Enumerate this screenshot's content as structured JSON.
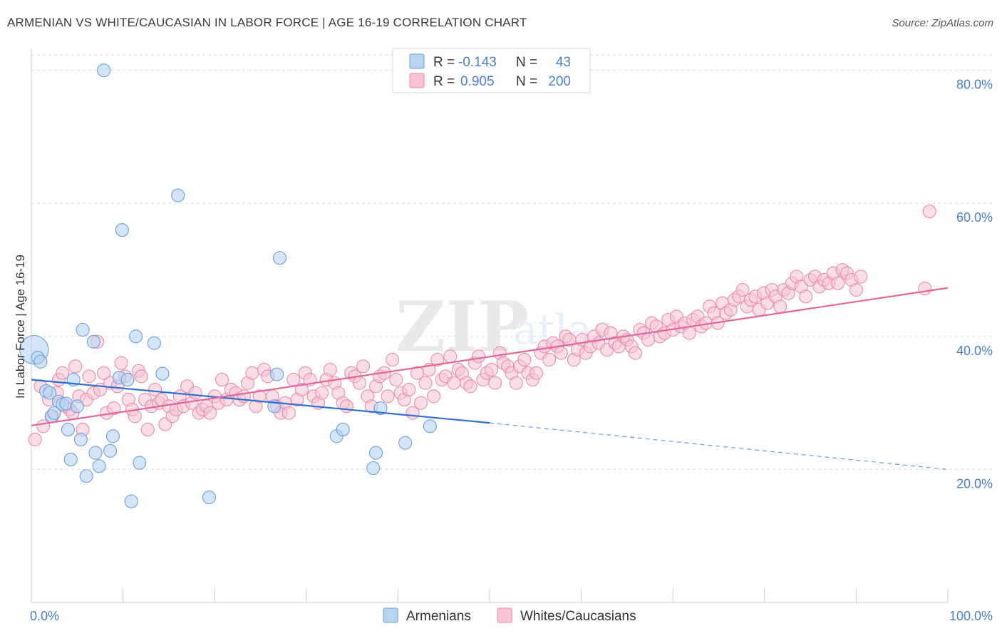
{
  "title": "ARMENIAN VS WHITE/CAUCASIAN IN LABOR FORCE | AGE 16-19 CORRELATION CHART",
  "source": "Source: ZipAtlas.com",
  "watermark": {
    "zip": "ZIP",
    "atlas": "atlas"
  },
  "colors": {
    "armenian_fill": "#b9d3f3",
    "armenian_stroke": "#6b9fd9",
    "armenian_line": "#2f6fd0",
    "white_fill": "#f6c3d4",
    "white_stroke": "#e88aac",
    "white_line": "#e0679a",
    "tick_text": "#4a7fc8",
    "grid": "#dddddd"
  },
  "legend": {
    "rows": [
      {
        "r_label": "R =",
        "r_value": "-0.143",
        "n_label": "N =",
        "n_value": "43"
      },
      {
        "r_label": "R =",
        "r_value": "0.905",
        "n_label": "N =",
        "n_value": "200"
      }
    ]
  },
  "bottom_legend": [
    "Armenians",
    "Whites/Caucasians"
  ],
  "chart_data": {
    "type": "scatter",
    "title": "ARMENIAN VS WHITE/CAUCASIAN IN LABOR FORCE | AGE 16-19 CORRELATION CHART",
    "xlabel": "",
    "ylabel": "In Labor Force | Age 16-19",
    "xlim": [
      0,
      100
    ],
    "ylim": [
      0,
      82
    ],
    "x_tick_labels": [
      "0.0%",
      "100.0%"
    ],
    "y_ticks": [
      20,
      40,
      60,
      80
    ],
    "y_tick_labels": [
      "20.0%",
      "40.0%",
      "60.0%",
      "80.0%"
    ],
    "grid": true,
    "legend_position": "top-center",
    "series": [
      {
        "name": "Armenians",
        "R": -0.143,
        "N": 43,
        "trend": {
          "x0": 0,
          "y0": 33.5,
          "x1": 50,
          "y1": 27.0,
          "dashed_to_x": 100,
          "dashed_to_y": 20.0
        },
        "points": [
          [
            0.3,
            38.0
          ],
          [
            0.7,
            36.8
          ],
          [
            1.0,
            36.2
          ],
          [
            1.6,
            31.8
          ],
          [
            2.0,
            31.5
          ],
          [
            2.2,
            28.0
          ],
          [
            2.5,
            28.5
          ],
          [
            3.0,
            30.2
          ],
          [
            3.4,
            29.8
          ],
          [
            3.8,
            29.9
          ],
          [
            4.0,
            26.0
          ],
          [
            4.3,
            21.5
          ],
          [
            4.6,
            33.5
          ],
          [
            5.0,
            29.5
          ],
          [
            5.4,
            24.5
          ],
          [
            5.6,
            41.0
          ],
          [
            6.0,
            19.0
          ],
          [
            6.8,
            39.2
          ],
          [
            7.0,
            22.5
          ],
          [
            7.4,
            20.5
          ],
          [
            7.9,
            80.0
          ],
          [
            8.6,
            22.8
          ],
          [
            8.9,
            25.0
          ],
          [
            9.6,
            33.8
          ],
          [
            9.9,
            56.0
          ],
          [
            10.5,
            33.5
          ],
          [
            10.9,
            15.2
          ],
          [
            11.4,
            40.0
          ],
          [
            11.8,
            21.0
          ],
          [
            13.4,
            39.0
          ],
          [
            14.3,
            34.4
          ],
          [
            16.0,
            61.2
          ],
          [
            19.4,
            15.8
          ],
          [
            27.1,
            51.8
          ],
          [
            26.8,
            34.3
          ],
          [
            26.5,
            29.5
          ],
          [
            33.3,
            25.0
          ],
          [
            34.0,
            26.0
          ],
          [
            37.3,
            20.2
          ],
          [
            37.6,
            22.5
          ],
          [
            38.1,
            29.2
          ],
          [
            40.8,
            24.0
          ],
          [
            43.5,
            26.5
          ]
        ]
      },
      {
        "name": "Whites/Caucasians",
        "R": 0.905,
        "N": 200,
        "trend": {
          "x0": 0,
          "y0": 26.6,
          "x1": 100,
          "y1": 47.3
        },
        "points": [
          [
            0.4,
            24.5
          ],
          [
            1.0,
            32.5
          ],
          [
            1.3,
            26.5
          ],
          [
            1.9,
            30.5
          ],
          [
            2.3,
            28.0
          ],
          [
            2.8,
            31.5
          ],
          [
            3.0,
            33.5
          ],
          [
            3.4,
            34.5
          ],
          [
            3.7,
            29.5
          ],
          [
            4.2,
            29.0
          ],
          [
            4.5,
            28.5
          ],
          [
            4.8,
            35.5
          ],
          [
            5.2,
            31.0
          ],
          [
            5.6,
            26.0
          ],
          [
            6.0,
            30.5
          ],
          [
            6.3,
            34.0
          ],
          [
            6.8,
            31.5
          ],
          [
            7.2,
            39.2
          ],
          [
            7.5,
            32.0
          ],
          [
            7.9,
            34.5
          ],
          [
            8.2,
            28.5
          ],
          [
            8.6,
            33.0
          ],
          [
            9.0,
            29.2
          ],
          [
            9.4,
            32.5
          ],
          [
            9.8,
            36.0
          ],
          [
            10.2,
            34.0
          ],
          [
            10.6,
            30.5
          ],
          [
            11.0,
            29.0
          ],
          [
            11.3,
            28.0
          ],
          [
            11.7,
            34.8
          ],
          [
            12.0,
            34.0
          ],
          [
            12.4,
            30.5
          ],
          [
            12.7,
            26.0
          ],
          [
            13.1,
            29.5
          ],
          [
            13.5,
            32.0
          ],
          [
            13.9,
            30.0
          ],
          [
            14.2,
            30.5
          ],
          [
            14.6,
            26.8
          ],
          [
            15.0,
            29.5
          ],
          [
            15.4,
            28.0
          ],
          [
            15.8,
            29.0
          ],
          [
            16.2,
            31.0
          ],
          [
            16.6,
            29.5
          ],
          [
            17.0,
            32.5
          ],
          [
            17.5,
            30.0
          ],
          [
            17.9,
            31.5
          ],
          [
            18.3,
            28.5
          ],
          [
            18.7,
            29.0
          ],
          [
            19.1,
            29.5
          ],
          [
            19.5,
            28.5
          ],
          [
            20.0,
            31.0
          ],
          [
            20.4,
            30.0
          ],
          [
            20.8,
            33.5
          ],
          [
            21.3,
            30.5
          ],
          [
            21.8,
            32.0
          ],
          [
            22.3,
            31.5
          ],
          [
            22.7,
            30.5
          ],
          [
            23.2,
            31.0
          ],
          [
            23.6,
            33.0
          ],
          [
            24.1,
            34.5
          ],
          [
            24.5,
            29.5
          ],
          [
            24.9,
            31.0
          ],
          [
            25.4,
            35.0
          ],
          [
            25.8,
            34.0
          ],
          [
            26.3,
            31.0
          ],
          [
            26.8,
            29.5
          ],
          [
            27.2,
            28.5
          ],
          [
            27.7,
            30.0
          ],
          [
            28.1,
            28.5
          ],
          [
            28.6,
            33.5
          ],
          [
            29.0,
            30.5
          ],
          [
            29.5,
            32.0
          ],
          [
            29.9,
            34.5
          ],
          [
            30.4,
            33.5
          ],
          [
            30.8,
            31.0
          ],
          [
            31.3,
            30.0
          ],
          [
            31.7,
            31.5
          ],
          [
            32.2,
            33.5
          ],
          [
            32.6,
            35.0
          ],
          [
            33.1,
            33.0
          ],
          [
            33.5,
            31.5
          ],
          [
            34.0,
            30.0
          ],
          [
            34.4,
            29.5
          ],
          [
            34.9,
            34.5
          ],
          [
            35.3,
            34.0
          ],
          [
            35.8,
            33.0
          ],
          [
            36.2,
            35.5
          ],
          [
            36.7,
            31.0
          ],
          [
            37.1,
            29.5
          ],
          [
            37.6,
            32.5
          ],
          [
            38.0,
            34.0
          ],
          [
            38.5,
            34.5
          ],
          [
            38.9,
            31.0
          ],
          [
            39.4,
            36.5
          ],
          [
            39.8,
            33.5
          ],
          [
            40.3,
            31.5
          ],
          [
            40.7,
            30.5
          ],
          [
            41.2,
            32.0
          ],
          [
            41.6,
            28.5
          ],
          [
            42.1,
            34.5
          ],
          [
            42.5,
            30.0
          ],
          [
            43.0,
            33.0
          ],
          [
            43.4,
            35.0
          ],
          [
            43.9,
            31.0
          ],
          [
            44.3,
            36.5
          ],
          [
            44.8,
            33.5
          ],
          [
            45.2,
            34.0
          ],
          [
            45.7,
            37.0
          ],
          [
            46.1,
            33.0
          ],
          [
            46.6,
            35.0
          ],
          [
            47.0,
            34.5
          ],
          [
            47.5,
            33.0
          ],
          [
            47.9,
            32.5
          ],
          [
            48.4,
            36.0
          ],
          [
            48.8,
            37.0
          ],
          [
            49.3,
            33.5
          ],
          [
            49.7,
            34.5
          ],
          [
            50.2,
            35.0
          ],
          [
            50.6,
            33.0
          ],
          [
            51.1,
            37.5
          ],
          [
            51.5,
            36.0
          ],
          [
            52.0,
            35.5
          ],
          [
            52.4,
            34.5
          ],
          [
            52.9,
            33.0
          ],
          [
            53.3,
            35.5
          ],
          [
            53.8,
            36.5
          ],
          [
            54.2,
            34.5
          ],
          [
            54.7,
            33.5
          ],
          [
            55.1,
            34.5
          ],
          [
            55.6,
            37.5
          ],
          [
            56.0,
            38.5
          ],
          [
            56.5,
            36.5
          ],
          [
            56.9,
            39.0
          ],
          [
            57.4,
            38.5
          ],
          [
            57.8,
            37.5
          ],
          [
            58.3,
            40.0
          ],
          [
            58.7,
            39.5
          ],
          [
            59.2,
            36.5
          ],
          [
            59.6,
            38.0
          ],
          [
            60.1,
            39.5
          ],
          [
            60.5,
            37.5
          ],
          [
            61.0,
            38.5
          ],
          [
            61.4,
            40.0
          ],
          [
            61.9,
            39.0
          ],
          [
            62.3,
            41.0
          ],
          [
            62.8,
            38.0
          ],
          [
            63.2,
            40.5
          ],
          [
            63.7,
            39.0
          ],
          [
            64.1,
            38.5
          ],
          [
            64.6,
            40.0
          ],
          [
            65.0,
            39.5
          ],
          [
            65.5,
            38.5
          ],
          [
            65.9,
            37.5
          ],
          [
            66.4,
            41.0
          ],
          [
            66.8,
            40.5
          ],
          [
            67.3,
            39.5
          ],
          [
            67.7,
            42.0
          ],
          [
            68.2,
            41.5
          ],
          [
            68.6,
            40.0
          ],
          [
            69.1,
            40.5
          ],
          [
            69.5,
            42.5
          ],
          [
            70.0,
            41.0
          ],
          [
            70.4,
            43.0
          ],
          [
            70.9,
            41.5
          ],
          [
            71.3,
            42.0
          ],
          [
            71.8,
            40.5
          ],
          [
            72.2,
            42.5
          ],
          [
            72.7,
            43.0
          ],
          [
            73.1,
            41.5
          ],
          [
            73.6,
            42.0
          ],
          [
            74.0,
            44.5
          ],
          [
            74.5,
            43.5
          ],
          [
            74.9,
            42.0
          ],
          [
            75.4,
            45.0
          ],
          [
            75.8,
            43.5
          ],
          [
            76.3,
            44.0
          ],
          [
            76.7,
            45.5
          ],
          [
            77.2,
            46.0
          ],
          [
            77.6,
            47.0
          ],
          [
            78.1,
            44.5
          ],
          [
            78.5,
            45.5
          ],
          [
            79.0,
            46.0
          ],
          [
            79.4,
            44.0
          ],
          [
            79.9,
            46.5
          ],
          [
            80.3,
            45.0
          ],
          [
            80.8,
            47.0
          ],
          [
            81.2,
            46.0
          ],
          [
            81.7,
            44.5
          ],
          [
            82.1,
            47.0
          ],
          [
            82.6,
            46.5
          ],
          [
            83.0,
            48.0
          ],
          [
            83.5,
            49.0
          ],
          [
            84.0,
            47.5
          ],
          [
            84.5,
            46.0
          ],
          [
            85.0,
            48.5
          ],
          [
            85.5,
            49.0
          ],
          [
            86.0,
            47.5
          ],
          [
            86.5,
            48.5
          ],
          [
            87.0,
            48.0
          ],
          [
            87.5,
            49.5
          ],
          [
            88.0,
            48.0
          ],
          [
            88.5,
            50.0
          ],
          [
            89.0,
            49.5
          ],
          [
            89.5,
            48.5
          ],
          [
            90.0,
            47.0
          ],
          [
            90.5,
            49.0
          ],
          [
            98.0,
            58.8
          ],
          [
            97.5,
            47.2
          ]
        ]
      }
    ]
  }
}
